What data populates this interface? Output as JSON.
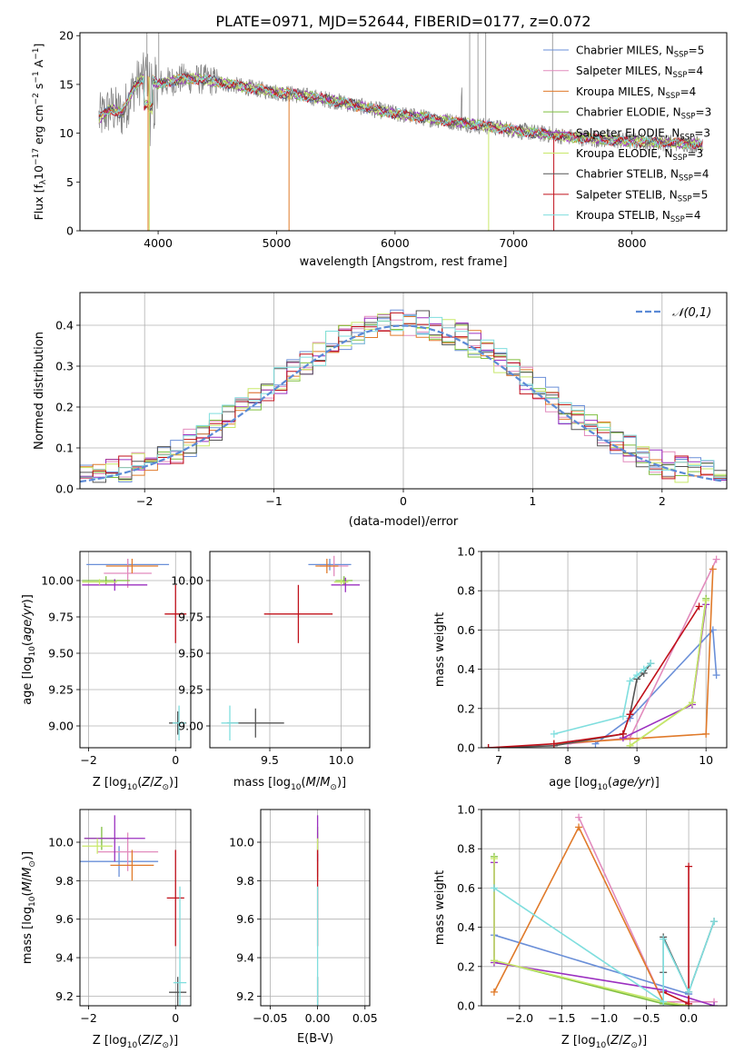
{
  "figure_title": "PLATE=0971, MJD=52644, FIBERID=0177, z=0.072",
  "colors": {
    "Chabrier MILES": "#6a8fd8",
    "Salpeter MILES": "#e28bbd",
    "Kroupa MILES": "#e07a2a",
    "Chabrier ELODIE": "#7fbf3f",
    "Salpeter ELODIE": "#9b30c0",
    "Kroupa ELODIE": "#c8e86a",
    "Chabrier STELIB": "#555555",
    "Salpeter STELIB": "#c0101a",
    "Kroupa STELIB": "#7fdede"
  },
  "chart_data": [
    {
      "id": "spectrum",
      "type": "line",
      "title": "PLATE=0971, MJD=52644, FIBERID=0177, z=0.072",
      "xlabel": "wavelength [Angstrom, rest frame]",
      "ylabel": "Flux [f_λ 10^-17 erg cm^-2 s^-1 A^-1]",
      "xlim": [
        3340,
        8800
      ],
      "ylim": [
        0,
        20.3
      ],
      "xticks": [
        4000,
        5000,
        6000,
        7000,
        8000
      ],
      "yticks": [
        0,
        5,
        10,
        15,
        20
      ],
      "legend_position": "top-right",
      "legend": [
        {
          "label": "Chabrier MILES, N",
          "sub": "SSP",
          "tail": "=5"
        },
        {
          "label": "Salpeter MILES, N",
          "sub": "SSP",
          "tail": "=4"
        },
        {
          "label": "Kroupa MILES, N",
          "sub": "SSP",
          "tail": "=4"
        },
        {
          "label": "Chabrier ELODIE, N",
          "sub": "SSP",
          "tail": "=3"
        },
        {
          "label": "Salpeter ELODIE, N",
          "sub": "SSP",
          "tail": "=3"
        },
        {
          "label": "Kroupa ELODIE, N",
          "sub": "SSP",
          "tail": "=3"
        },
        {
          "label": "Chabrier STELIB, N",
          "sub": "SSP",
          "tail": "=4"
        },
        {
          "label": "Salpeter STELIB, N",
          "sub": "SSP",
          "tail": "=5"
        },
        {
          "label": "Kroupa STELIB, N",
          "sub": "SSP",
          "tail": "=4"
        }
      ],
      "data_envelope": {
        "wavelength": [
          3500,
          3600,
          3700,
          3800,
          3900,
          4000,
          4200,
          4400,
          4600,
          4800,
          5000,
          5200,
          5500,
          5800,
          6000,
          6300,
          6600,
          6900,
          7200,
          7500,
          7800,
          8100,
          8400,
          8600
        ],
        "flux": [
          11.5,
          12.5,
          12.0,
          14.8,
          16.0,
          15.0,
          15.6,
          15.5,
          15.0,
          14.6,
          14.2,
          13.9,
          13.3,
          12.5,
          12.0,
          11.5,
          11.0,
          10.5,
          10.0,
          9.6,
          9.3,
          9.1,
          9.0,
          8.9
        ]
      }
    },
    {
      "id": "residuals",
      "type": "line",
      "xlabel": "(data-model)/error",
      "ylabel": "Normed distribution",
      "xlim": [
        -2.5,
        2.5
      ],
      "ylim": [
        0,
        0.48
      ],
      "xticks": [
        -2,
        -1,
        0,
        1,
        2
      ],
      "yticks": [
        0.0,
        0.1,
        0.2,
        0.3,
        0.4
      ],
      "legend_position": "top-right",
      "legend": [
        {
          "label": "𝒩(0,1)"
        }
      ],
      "reference": "standard normal pdf, mean 0, sigma 1",
      "bin_width": 0.1
    },
    {
      "id": "age_vs_Z",
      "type": "scatter",
      "xlabel": "Z [log₁₀(Z/Z⊙)]",
      "ylabel": "age  [log₁₀(age/yr)]",
      "xlim": [
        -2.2,
        0.35
      ],
      "ylim": [
        8.85,
        10.2
      ],
      "xticks": [
        -2,
        0
      ],
      "yticks": [
        9.0,
        9.25,
        9.5,
        9.75,
        10.0
      ],
      "series": [
        {
          "key": "Chabrier MILES",
          "x": -1.1,
          "y": 10.11,
          "xerr": 0.95,
          "yerr": 0.04
        },
        {
          "key": "Salpeter MILES",
          "x": -1.1,
          "y": 10.05,
          "xerr": 0.55,
          "yerr": 0.1
        },
        {
          "key": "Kroupa MILES",
          "x": -1.0,
          "y": 10.1,
          "xerr": 0.6,
          "yerr": 0.05
        },
        {
          "key": "Chabrier ELODIE",
          "x": -1.6,
          "y": 10.0,
          "xerr": 0.55,
          "yerr": 0.03
        },
        {
          "key": "Salpeter ELODIE",
          "x": -1.4,
          "y": 9.97,
          "xerr": 0.75,
          "yerr": 0.04
        },
        {
          "key": "Kroupa ELODIE",
          "x": -1.75,
          "y": 9.99,
          "xerr": 0.4,
          "yerr": 0.02
        },
        {
          "key": "Chabrier STELIB",
          "x": 0.05,
          "y": 9.02,
          "xerr": 0.2,
          "yerr": 0.08
        },
        {
          "key": "Salpeter STELIB",
          "x": 0.0,
          "y": 9.77,
          "xerr": 0.25,
          "yerr": 0.2
        },
        {
          "key": "Kroupa STELIB",
          "x": 0.08,
          "y": 9.02,
          "xerr": 0.15,
          "yerr": 0.12
        }
      ]
    },
    {
      "id": "age_vs_mass",
      "type": "scatter",
      "xlabel": "mass [log₁₀(M/M⊙)]",
      "ylabel": "",
      "xlim": [
        9.08,
        10.2
      ],
      "ylim": [
        8.85,
        10.2
      ],
      "xticks": [
        9.5,
        10.0
      ],
      "yticks": [
        9.0,
        9.25,
        9.5,
        9.75,
        10.0
      ],
      "series": [
        {
          "key": "Chabrier MILES",
          "x": 9.92,
          "y": 10.11,
          "xerr": 0.15,
          "yerr": 0.04
        },
        {
          "key": "Salpeter MILES",
          "x": 9.95,
          "y": 10.1,
          "xerr": 0.1,
          "yerr": 0.07
        },
        {
          "key": "Kroupa MILES",
          "x": 9.9,
          "y": 10.1,
          "xerr": 0.08,
          "yerr": 0.05
        },
        {
          "key": "Chabrier ELODIE",
          "x": 10.02,
          "y": 10.0,
          "xerr": 0.06,
          "yerr": 0.03
        },
        {
          "key": "Salpeter ELODIE",
          "x": 10.03,
          "y": 9.97,
          "xerr": 0.1,
          "yerr": 0.05
        },
        {
          "key": "Kroupa ELODIE",
          "x": 10.0,
          "y": 9.99,
          "xerr": 0.05,
          "yerr": 0.02
        },
        {
          "key": "Chabrier STELIB",
          "x": 9.4,
          "y": 9.02,
          "xerr": 0.2,
          "yerr": 0.1
        },
        {
          "key": "Salpeter STELIB",
          "x": 9.7,
          "y": 9.77,
          "xerr": 0.24,
          "yerr": 0.2
        },
        {
          "key": "Kroupa STELIB",
          "x": 9.22,
          "y": 9.02,
          "xerr": 0.06,
          "yerr": 0.12
        }
      ]
    },
    {
      "id": "weight_vs_age",
      "type": "line",
      "xlabel": "age  [log₁₀(age/yr)]",
      "ylabel": "mass weight",
      "xlim": [
        6.75,
        10.3
      ],
      "ylim": [
        0,
        1.0
      ],
      "xticks": [
        7,
        8,
        9,
        10
      ],
      "yticks": [
        0.0,
        0.2,
        0.4,
        0.6,
        0.8,
        1.0
      ],
      "series": [
        {
          "key": "Chabrier MILES",
          "x": [
            8.4,
            8.9,
            10.1,
            10.15
          ],
          "y": [
            0.02,
            0.15,
            0.6,
            0.37
          ]
        },
        {
          "key": "Salpeter MILES",
          "x": [
            8.0,
            8.9,
            10.15
          ],
          "y": [
            0.02,
            0.05,
            0.96
          ]
        },
        {
          "key": "Kroupa MILES",
          "x": [
            7.8,
            10.0,
            10.1
          ],
          "y": [
            0.02,
            0.07,
            0.91
          ]
        },
        {
          "key": "Chabrier ELODIE",
          "x": [
            8.9,
            9.8,
            10.0
          ],
          "y": [
            0.01,
            0.23,
            0.76
          ]
        },
        {
          "key": "Salpeter ELODIE",
          "x": [
            8.8,
            9.8,
            10.0
          ],
          "y": [
            0.05,
            0.22,
            0.73
          ]
        },
        {
          "key": "Kroupa ELODIE",
          "x": [
            8.9,
            9.8,
            10.0
          ],
          "y": [
            0.01,
            0.23,
            0.75
          ]
        },
        {
          "key": "Chabrier STELIB",
          "x": [
            6.85,
            7.8,
            8.8,
            8.9,
            9.0,
            9.1,
            9.2
          ],
          "y": [
            0.0,
            0.01,
            0.07,
            0.17,
            0.35,
            0.38,
            0.43
          ]
        },
        {
          "key": "Salpeter STELIB",
          "x": [
            6.85,
            7.8,
            8.8,
            8.9,
            9.9
          ],
          "y": [
            0.0,
            0.02,
            0.07,
            0.17,
            0.72
          ]
        },
        {
          "key": "Kroupa STELIB",
          "x": [
            7.8,
            8.8,
            8.9,
            9.0,
            9.1,
            9.2
          ],
          "y": [
            0.07,
            0.16,
            0.34,
            0.37,
            0.4,
            0.43
          ]
        }
      ]
    },
    {
      "id": "mass_vs_Z",
      "type": "scatter",
      "xlabel": "Z [log₁₀(Z/Z⊙)]",
      "ylabel": "mass [log₁₀(M/M⊙)]",
      "xlim": [
        -2.2,
        0.35
      ],
      "ylim": [
        9.15,
        10.17
      ],
      "xticks": [
        -2,
        0
      ],
      "yticks": [
        9.2,
        9.4,
        9.6,
        9.8,
        10.0
      ],
      "series": [
        {
          "key": "Chabrier MILES",
          "x": -1.3,
          "y": 9.9,
          "xerr": 0.9,
          "yerr": 0.08
        },
        {
          "key": "Salpeter MILES",
          "x": -1.1,
          "y": 9.95,
          "xerr": 0.7,
          "yerr": 0.1
        },
        {
          "key": "Kroupa MILES",
          "x": -1.0,
          "y": 9.88,
          "xerr": 0.5,
          "yerr": 0.08
        },
        {
          "key": "Chabrier ELODIE",
          "x": -1.7,
          "y": 10.02,
          "xerr": 0.4,
          "yerr": 0.06
        },
        {
          "key": "Salpeter ELODIE",
          "x": -1.4,
          "y": 10.02,
          "xerr": 0.7,
          "yerr": 0.12
        },
        {
          "key": "Kroupa ELODIE",
          "x": -1.8,
          "y": 9.98,
          "xerr": 0.35,
          "yerr": 0.04
        },
        {
          "key": "Chabrier STELIB",
          "x": 0.05,
          "y": 9.22,
          "xerr": 0.2,
          "yerr": 0.08
        },
        {
          "key": "Salpeter STELIB",
          "x": 0.0,
          "y": 9.71,
          "xerr": 0.2,
          "yerr": 0.25
        },
        {
          "key": "Kroupa STELIB",
          "x": 0.1,
          "y": 9.27,
          "xerr": 0.15,
          "yerr": 0.5
        }
      ]
    },
    {
      "id": "mass_vs_EBV",
      "type": "scatter",
      "xlabel": "E(B-V)",
      "ylabel": "",
      "xlim": [
        -0.06,
        0.055
      ],
      "ylim": [
        9.15,
        10.17
      ],
      "xticks": [
        -0.05,
        0.0,
        0.05
      ],
      "xtick_labels": [
        "−0.05",
        "0.00",
        "0.05"
      ],
      "yticks": [
        9.2,
        9.4,
        9.6,
        9.8,
        10.0
      ],
      "series": [
        {
          "key": "Chabrier MILES",
          "x": 0.0,
          "y": 9.9,
          "yerr": 0.08
        },
        {
          "key": "Salpeter MILES",
          "x": 0.0,
          "y": 9.95,
          "yerr": 0.1
        },
        {
          "key": "Kroupa MILES",
          "x": 0.0,
          "y": 9.88,
          "yerr": 0.08
        },
        {
          "key": "Chabrier ELODIE",
          "x": 0.0,
          "y": 10.02,
          "yerr": 0.06
        },
        {
          "key": "Salpeter ELODIE",
          "x": 0.0,
          "y": 10.02,
          "yerr": 0.12
        },
        {
          "key": "Kroupa ELODIE",
          "x": 0.0,
          "y": 9.98,
          "yerr": 0.04
        },
        {
          "key": "Chabrier STELIB",
          "x": 0.0,
          "y": 9.22,
          "yerr": 0.08
        },
        {
          "key": "Salpeter STELIB",
          "x": 0.0,
          "y": 9.71,
          "yerr": 0.25
        },
        {
          "key": "Kroupa STELIB",
          "x": 0.0,
          "y": 9.27,
          "yerr": 0.5
        }
      ]
    },
    {
      "id": "weight_vs_Z",
      "type": "line",
      "xlabel": "Z [log₁₀(Z/Z⊙)]",
      "ylabel": "mass weight",
      "xlim": [
        -2.45,
        0.45
      ],
      "ylim": [
        0,
        1.0
      ],
      "xticks": [
        -2.0,
        -1.5,
        -1.0,
        -0.5,
        0.0
      ],
      "xtick_labels": [
        "−2.0",
        "−1.5",
        "−1.0",
        "−0.5",
        "0.0"
      ],
      "yticks": [
        0.0,
        0.2,
        0.4,
        0.6,
        0.8,
        1.0
      ],
      "series": [
        {
          "key": "Chabrier MILES",
          "x": [
            -2.3,
            0.0,
            0.0
          ],
          "y": [
            0.36,
            0.06,
            0.06
          ]
        },
        {
          "key": "Salpeter MILES",
          "x": [
            -1.3,
            -0.3,
            0.3
          ],
          "y": [
            0.96,
            0.02,
            0.02
          ]
        },
        {
          "key": "Kroupa MILES",
          "x": [
            -2.3,
            -1.3,
            -0.3,
            0.0
          ],
          "y": [
            0.07,
            0.91,
            0.02,
            0.0
          ]
        },
        {
          "key": "Chabrier ELODIE",
          "x": [
            -2.3,
            -2.3,
            -0.3,
            0.0
          ],
          "y": [
            0.76,
            0.23,
            0.01,
            0.0
          ]
        },
        {
          "key": "Salpeter ELODIE",
          "x": [
            -2.3,
            -2.3,
            -0.3,
            0.3
          ],
          "y": [
            0.73,
            0.22,
            0.08,
            0.0
          ]
        },
        {
          "key": "Kroupa ELODIE",
          "x": [
            -2.3,
            -2.3,
            -0.3,
            0.0
          ],
          "y": [
            0.75,
            0.23,
            0.02,
            0.0
          ]
        },
        {
          "key": "Chabrier STELIB",
          "x": [
            -0.3,
            -0.3,
            0.0,
            0.3
          ],
          "y": [
            0.17,
            0.35,
            0.07,
            0.43
          ]
        },
        {
          "key": "Salpeter STELIB",
          "x": [
            -0.3,
            0.0,
            0.0
          ],
          "y": [
            0.07,
            0.01,
            0.71
          ]
        },
        {
          "key": "Kroupa STELIB",
          "x": [
            -2.3,
            -0.3,
            -0.3,
            0.0,
            0.3
          ],
          "y": [
            0.6,
            0.02,
            0.34,
            0.07,
            0.43
          ]
        }
      ]
    }
  ]
}
